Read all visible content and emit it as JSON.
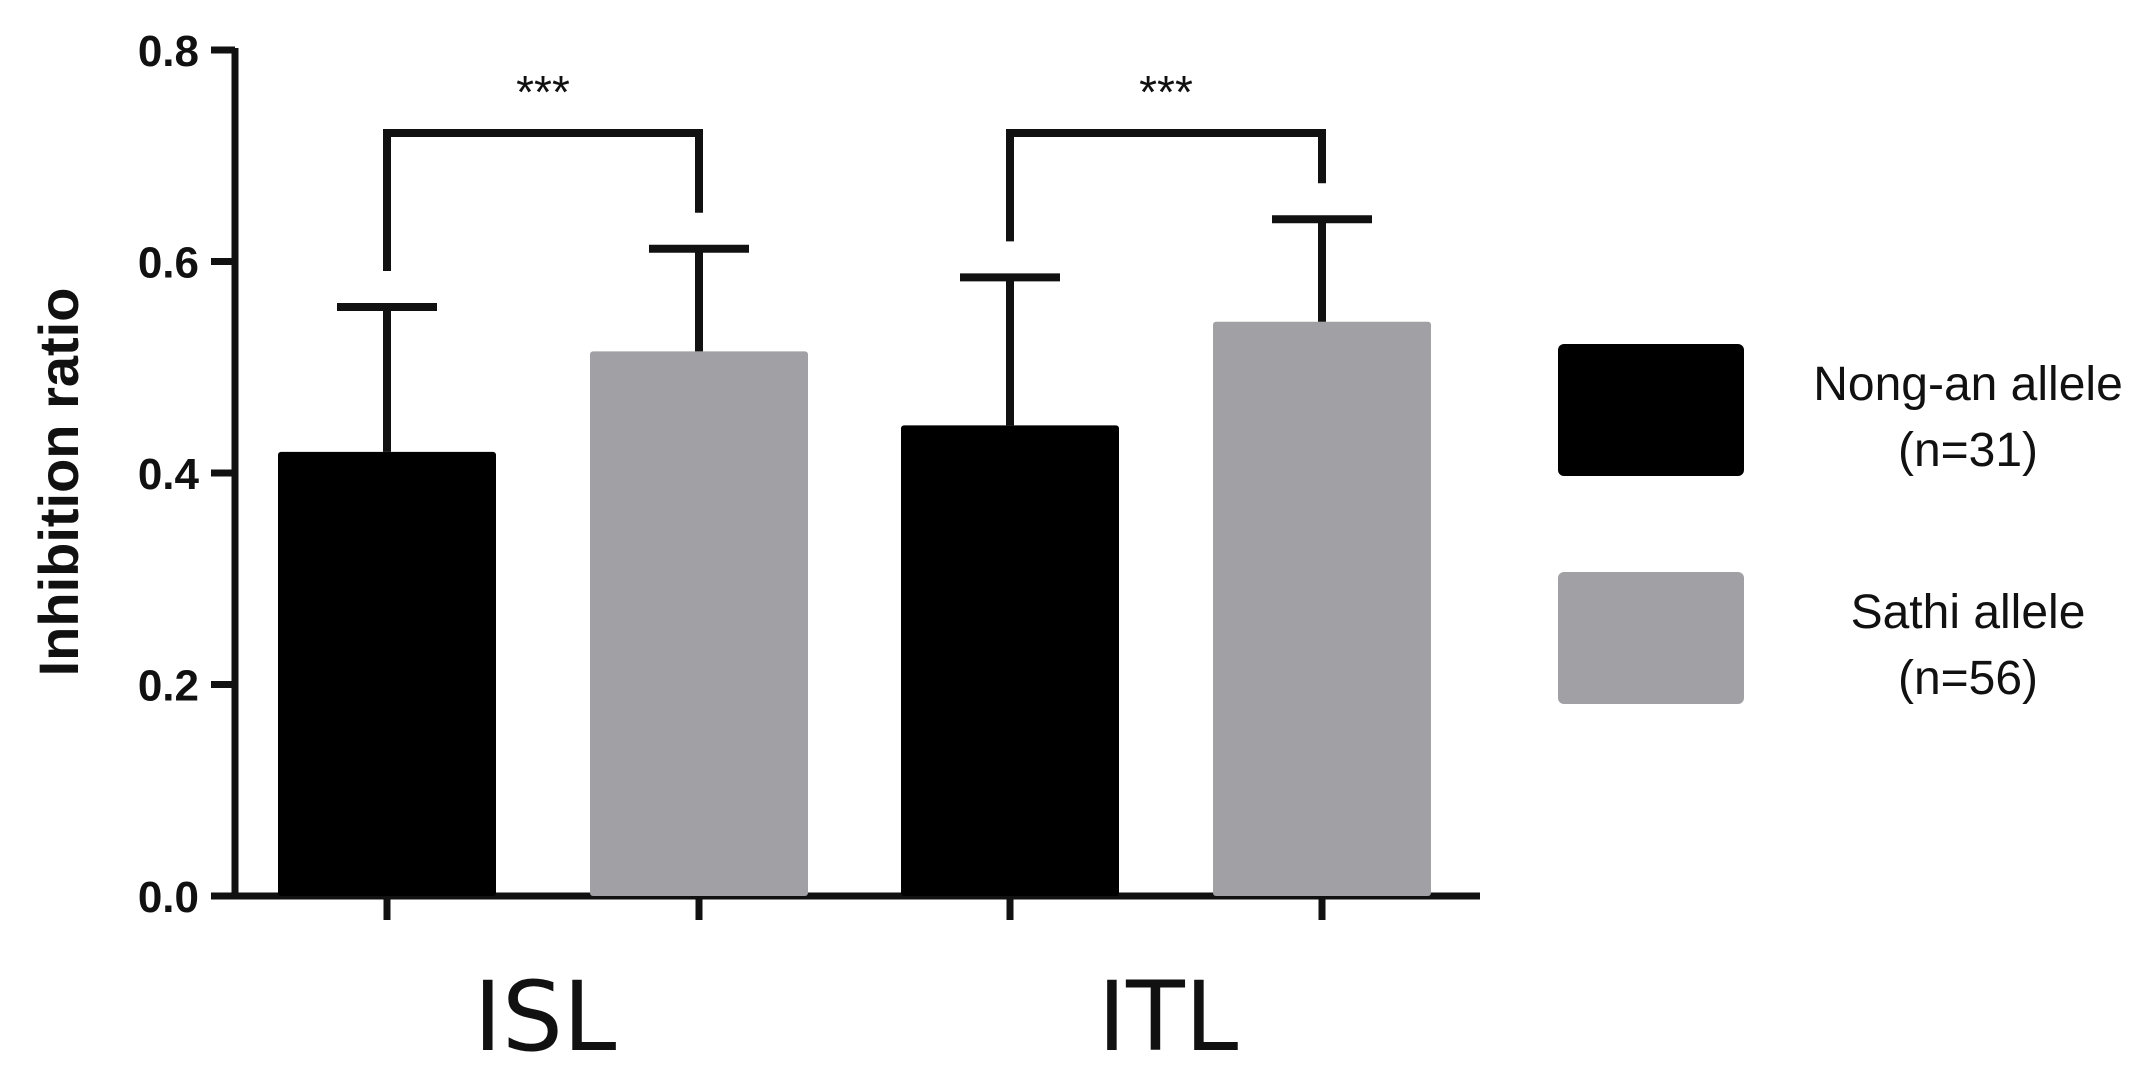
{
  "chart_data": {
    "type": "bar",
    "ylabel": "Inhibition ratio",
    "ylim": [
      0,
      0.8
    ],
    "yticks": [
      "0.0",
      "0.2",
      "0.4",
      "0.6",
      "0.8"
    ],
    "categories": [
      "ISL",
      "ITL"
    ],
    "series": [
      {
        "name": "Nong-an allele",
        "legend_line1": "Nong-an allele",
        "legend_line2": "(n=31)",
        "color": "#000000",
        "values": [
          0.42,
          0.445
        ],
        "error": [
          0.137,
          0.14
        ]
      },
      {
        "name": "Sathi allele",
        "legend_line1": "Sathi allele",
        "legend_line2": "(n=56)",
        "color": "#a1a0a4",
        "values": [
          0.515,
          0.543
        ],
        "error": [
          0.097,
          0.097
        ]
      }
    ],
    "significance": [
      "***",
      "***"
    ],
    "grid": false,
    "legend_position": "right"
  }
}
